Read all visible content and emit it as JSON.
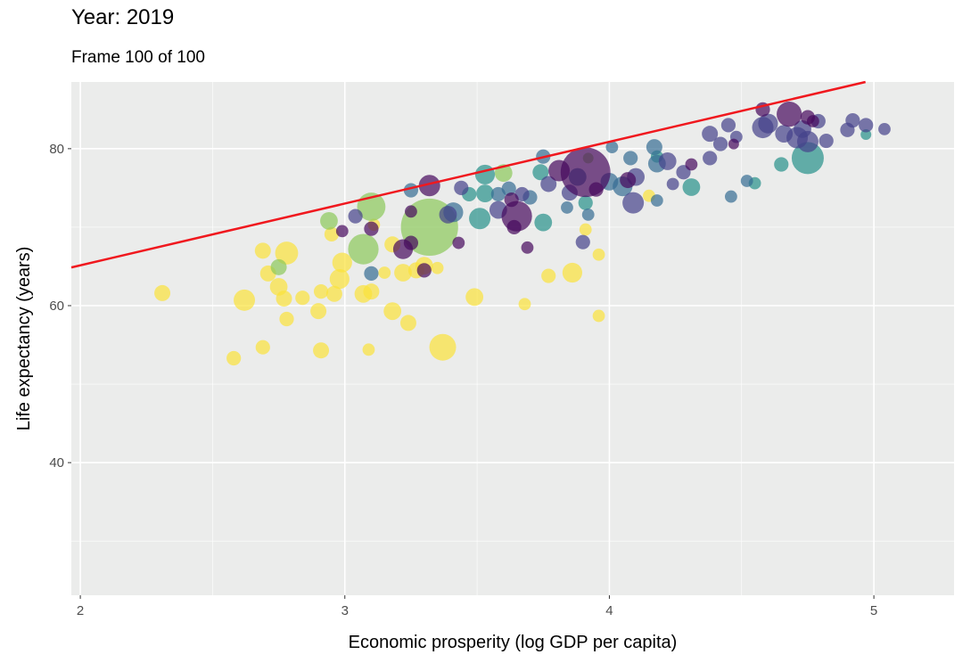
{
  "chart_data": {
    "type": "scatter",
    "title": "Year: 2019",
    "subtitle": "Frame 100 of 100",
    "xlabel": "Economic prosperity (log GDP per capita)",
    "ylabel": "Life expectancy (years)",
    "xlim": [
      1.966,
      5.303
    ],
    "ylim": [
      23.1,
      88.5
    ],
    "x_ticks": [
      2,
      3,
      4,
      5
    ],
    "y_ticks": [
      40,
      60,
      80
    ],
    "x_minor": [
      2.5,
      3.5,
      4.5
    ],
    "y_minor": [
      30,
      50,
      70
    ],
    "grid": true,
    "background": "#ebeceb",
    "palette": [
      "#46085c",
      "#45418a",
      "#356c93",
      "#26928a",
      "#8bc95a",
      "#fbe33a"
    ],
    "fit_line": {
      "slope": 7.87,
      "intercept": 49.4,
      "color": "#f0181e"
    },
    "points_format": [
      "x",
      "y",
      "relative_size",
      "color_index"
    ],
    "points": [
      [
        2.31,
        61.6,
        3,
        5
      ],
      [
        2.58,
        53.3,
        2.7,
        5
      ],
      [
        2.62,
        60.7,
        4,
        5
      ],
      [
        2.69,
        54.7,
        2.7,
        5
      ],
      [
        2.69,
        67.0,
        3,
        5
      ],
      [
        2.78,
        66.7,
        4.3,
        5
      ],
      [
        2.71,
        64.1,
        3,
        5
      ],
      [
        2.75,
        62.4,
        3.3,
        5
      ],
      [
        2.77,
        60.9,
        3,
        5
      ],
      [
        2.78,
        58.3,
        2.7,
        5
      ],
      [
        2.84,
        61.0,
        2.7,
        5
      ],
      [
        2.9,
        59.3,
        3,
        5
      ],
      [
        2.91,
        61.8,
        2.7,
        5
      ],
      [
        2.91,
        54.3,
        3,
        5
      ],
      [
        2.95,
        69.1,
        2.7,
        5
      ],
      [
        2.96,
        61.5,
        3,
        5
      ],
      [
        2.98,
        63.4,
        3.7,
        5
      ],
      [
        2.99,
        65.5,
        3.7,
        5
      ],
      [
        3.07,
        61.5,
        3.3,
        5
      ],
      [
        3.09,
        54.4,
        2.3,
        5
      ],
      [
        3.1,
        61.8,
        3,
        5
      ],
      [
        3.15,
        64.2,
        2.3,
        5
      ],
      [
        3.18,
        67.8,
        3,
        5
      ],
      [
        3.18,
        59.3,
        3.3,
        5
      ],
      [
        3.22,
        64.2,
        3.3,
        5
      ],
      [
        3.24,
        57.8,
        3,
        5
      ],
      [
        3.27,
        64.5,
        3,
        5
      ],
      [
        3.3,
        65.1,
        3.3,
        5
      ],
      [
        3.37,
        54.7,
        5,
        5
      ],
      [
        3.49,
        61.1,
        3.3,
        5
      ],
      [
        3.77,
        63.8,
        2.7,
        5
      ],
      [
        3.86,
        64.2,
        3.7,
        5
      ],
      [
        3.68,
        60.2,
        2.3,
        5
      ],
      [
        3.96,
        58.7,
        2.3,
        5
      ],
      [
        3.96,
        66.5,
        2.3,
        5
      ],
      [
        3.91,
        69.7,
        2.3,
        5
      ],
      [
        4.15,
        74.0,
        2.3,
        5
      ],
      [
        3.11,
        70.3,
        2.3,
        5
      ],
      [
        3.35,
        64.8,
        2.3,
        5
      ],
      [
        3.32,
        70.0,
        10.7,
        4
      ],
      [
        3.07,
        67.2,
        5.7,
        4
      ],
      [
        3.1,
        72.6,
        5.3,
        4
      ],
      [
        2.94,
        70.8,
        3.3,
        4
      ],
      [
        2.75,
        64.9,
        3,
        4
      ],
      [
        3.6,
        76.9,
        3.3,
        4
      ],
      [
        3.92,
        78.8,
        2,
        4
      ],
      [
        4.75,
        78.8,
        6,
        3
      ],
      [
        4.97,
        81.8,
        2,
        3
      ],
      [
        3.53,
        76.7,
        3.7,
        3
      ],
      [
        3.47,
        74.2,
        2.7,
        3
      ],
      [
        3.53,
        74.3,
        3.3,
        3
      ],
      [
        3.51,
        71.1,
        4,
        3
      ],
      [
        3.75,
        70.6,
        3.3,
        3
      ],
      [
        4.31,
        75.1,
        3.3,
        3
      ],
      [
        4.65,
        78.0,
        2.7,
        3
      ],
      [
        4.55,
        75.6,
        2.3,
        3
      ],
      [
        3.91,
        73.1,
        2.7,
        3
      ],
      [
        3.74,
        77.0,
        3,
        3
      ],
      [
        4.18,
        79.0,
        2.3,
        3
      ],
      [
        3.1,
        64.1,
        2.7,
        2
      ],
      [
        3.25,
        74.7,
        2.7,
        2
      ],
      [
        3.62,
        74.9,
        2.7,
        2
      ],
      [
        3.84,
        72.5,
        2.3,
        2
      ],
      [
        3.92,
        71.6,
        2.3,
        2
      ],
      [
        4.01,
        80.2,
        2.3,
        2
      ],
      [
        4.08,
        78.8,
        2.7,
        2
      ],
      [
        4.0,
        75.8,
        3.3,
        2
      ],
      [
        4.17,
        80.2,
        3,
        2
      ],
      [
        4.18,
        78.1,
        3.3,
        2
      ],
      [
        4.18,
        73.4,
        2.3,
        2
      ],
      [
        4.46,
        73.9,
        2.3,
        2
      ],
      [
        3.41,
        71.9,
        3.7,
        2
      ],
      [
        3.7,
        73.8,
        2.7,
        2
      ],
      [
        3.88,
        76.4,
        3.3,
        2
      ],
      [
        4.05,
        75.2,
        3.7,
        2
      ],
      [
        4.52,
        75.9,
        2.3,
        2
      ],
      [
        3.75,
        79.0,
        2.7,
        2
      ],
      [
        3.58,
        74.2,
        2.7,
        2
      ],
      [
        3.04,
        71.4,
        2.7,
        1
      ],
      [
        3.39,
        71.6,
        3.3,
        1
      ],
      [
        3.67,
        74.2,
        2.7,
        1
      ],
      [
        3.9,
        68.1,
        2.7,
        1
      ],
      [
        4.1,
        76.4,
        3.3,
        1
      ],
      [
        4.09,
        73.1,
        4,
        1
      ],
      [
        4.38,
        81.9,
        3,
        1
      ],
      [
        4.38,
        78.8,
        2.7,
        1
      ],
      [
        4.42,
        80.6,
        2.7,
        1
      ],
      [
        4.58,
        82.7,
        4,
        1
      ],
      [
        4.66,
        81.9,
        3.3,
        1
      ],
      [
        4.71,
        81.4,
        4,
        1
      ],
      [
        4.73,
        82.5,
        3.3,
        1
      ],
      [
        4.75,
        80.9,
        4,
        1
      ],
      [
        4.79,
        83.5,
        2.7,
        1
      ],
      [
        4.9,
        82.4,
        2.7,
        1
      ],
      [
        4.92,
        83.6,
        2.7,
        1
      ],
      [
        4.97,
        83.0,
        2.7,
        1
      ],
      [
        5.04,
        82.5,
        2.3,
        1
      ],
      [
        4.82,
        81.0,
        2.7,
        1
      ],
      [
        3.58,
        72.2,
        3.3,
        1
      ],
      [
        3.77,
        75.5,
        3,
        1
      ],
      [
        4.28,
        77.0,
        2.7,
        1
      ],
      [
        4.22,
        78.4,
        3.3,
        1
      ],
      [
        4.45,
        83.0,
        2.7,
        1
      ],
      [
        4.6,
        83.2,
        3.7,
        1
      ],
      [
        3.44,
        75.0,
        2.7,
        1
      ],
      [
        3.85,
        74.4,
        3,
        1
      ],
      [
        4.24,
        75.5,
        2.3,
        1
      ],
      [
        4.48,
        81.5,
        2.3,
        1
      ],
      [
        3.32,
        75.3,
        4,
        0
      ],
      [
        2.99,
        69.5,
        2.3,
        0
      ],
      [
        3.1,
        69.8,
        2.7,
        0
      ],
      [
        3.22,
        67.2,
        3.7,
        0
      ],
      [
        3.25,
        68.0,
        2.7,
        0
      ],
      [
        3.3,
        64.5,
        2.7,
        0
      ],
      [
        3.43,
        68.0,
        2.3,
        0
      ],
      [
        3.65,
        71.4,
        5.7,
        0
      ],
      [
        3.63,
        73.5,
        2.7,
        0
      ],
      [
        3.64,
        70.0,
        2.7,
        0
      ],
      [
        3.81,
        77.2,
        4,
        0
      ],
      [
        3.91,
        77.0,
        9.3,
        0
      ],
      [
        4.58,
        85.0,
        2.7,
        0
      ],
      [
        4.47,
        80.6,
        2,
        0
      ],
      [
        4.68,
        84.4,
        4.7,
        0
      ],
      [
        4.75,
        84.0,
        2.7,
        0
      ],
      [
        4.77,
        83.5,
        2.3,
        0
      ],
      [
        3.69,
        67.4,
        2.3,
        0
      ],
      [
        3.95,
        74.8,
        2.7,
        0
      ],
      [
        4.07,
        76.0,
        3,
        0
      ],
      [
        3.25,
        72.0,
        2.3,
        0
      ],
      [
        4.31,
        78.0,
        2.3,
        0
      ]
    ]
  }
}
